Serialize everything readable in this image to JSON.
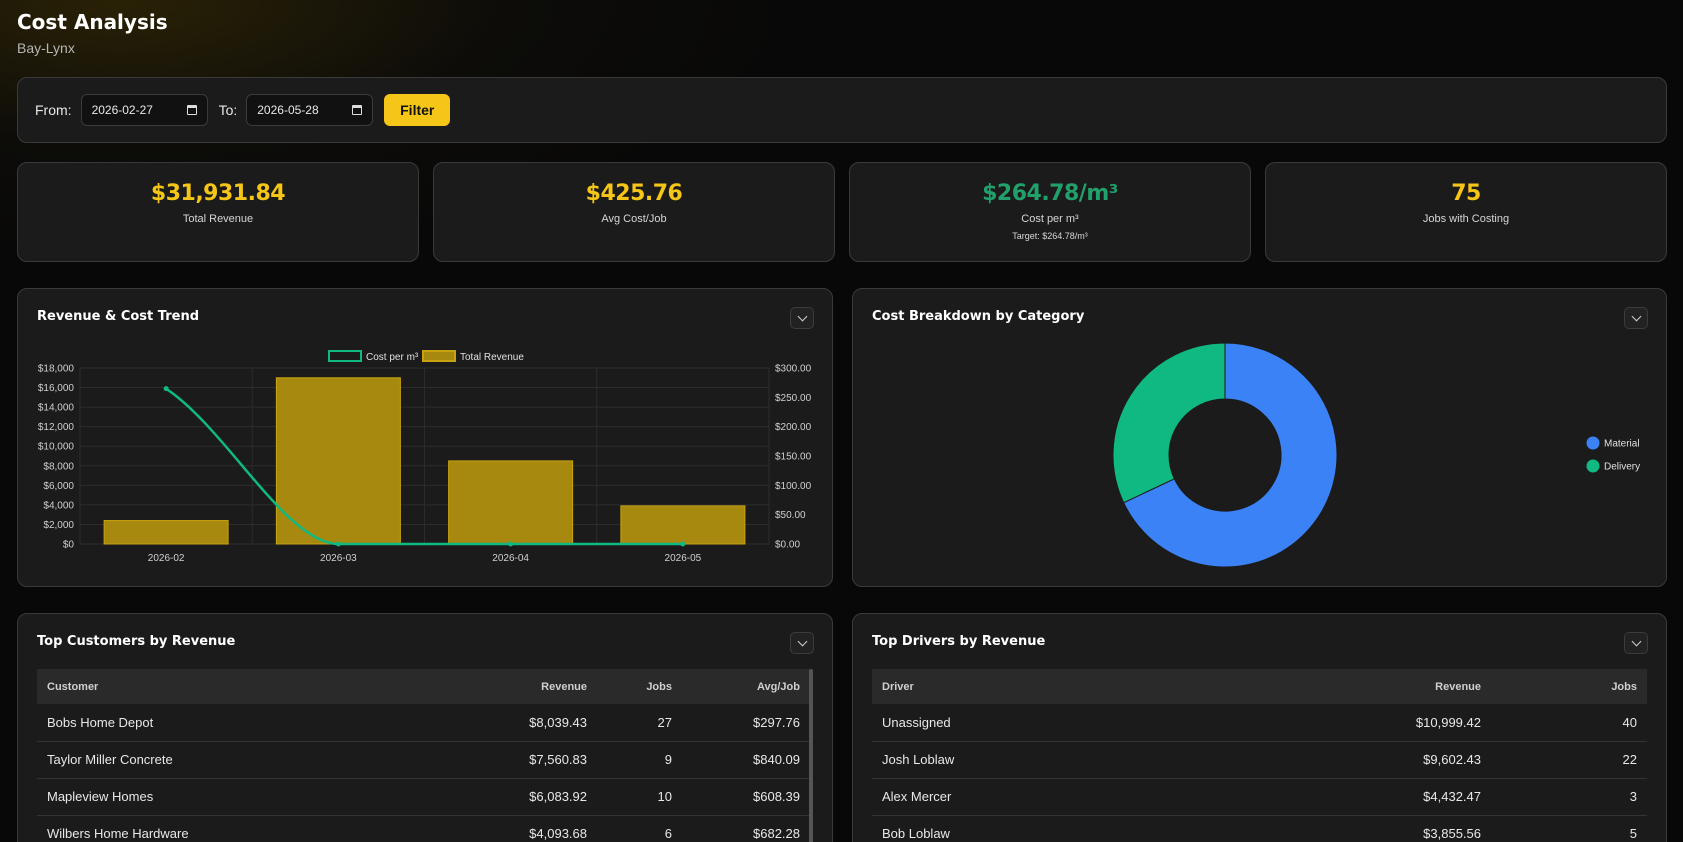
{
  "header": {
    "title": "Cost Analysis",
    "subtitle": "Bay-Lynx"
  },
  "filter": {
    "from_label": "From:",
    "from_value": "2026-02-27",
    "to_label": "To:",
    "to_value": "2026-05-28",
    "button_label": "Filter"
  },
  "stats": [
    {
      "value": "$31,931.84",
      "caption": "Total Revenue",
      "color": "#f5c518"
    },
    {
      "value": "$425.76",
      "caption": "Avg Cost/Job",
      "color": "#f5c518"
    },
    {
      "value": "$264.78/m³",
      "caption": "Cost per m³",
      "target": "Target: $264.78/m³",
      "color": "#22a06b"
    },
    {
      "value": "75",
      "caption": "Jobs with Costing",
      "color": "#f5c518"
    }
  ],
  "trend": {
    "title": "Revenue & Cost Trend"
  },
  "donut": {
    "title": "Cost Breakdown by Category"
  },
  "customers": {
    "title": "Top Customers by Revenue",
    "columns": [
      "Customer",
      "Revenue",
      "Jobs",
      "Avg/Job"
    ],
    "rows": [
      [
        "Bobs Home Depot",
        "$8,039.43",
        "27",
        "$297.76"
      ],
      [
        "Taylor Miller Concrete",
        "$7,560.83",
        "9",
        "$840.09"
      ],
      [
        "Mapleview Homes",
        "$6,083.92",
        "10",
        "$608.39"
      ],
      [
        "Wilbers Home Hardware",
        "$4,093.68",
        "6",
        "$682.28"
      ]
    ]
  },
  "drivers": {
    "title": "Top Drivers by Revenue",
    "columns": [
      "Driver",
      "Revenue",
      "Jobs"
    ],
    "rows": [
      [
        "Unassigned",
        "$10,999.42",
        "40"
      ],
      [
        "Josh Loblaw",
        "$9,602.43",
        "22"
      ],
      [
        "Alex Mercer",
        "$4,432.47",
        "3"
      ],
      [
        "Bob Loblaw",
        "$3,855.56",
        "5"
      ]
    ]
  },
  "chart_data": [
    {
      "type": "bar",
      "categories": [
        "2026-02",
        "2026-03",
        "2026-04",
        "2026-05"
      ],
      "series": [
        {
          "name": "Total Revenue",
          "type": "bar",
          "axis": "left",
          "color": "#a8890f",
          "values": [
            2400,
            17000,
            8500,
            3900
          ]
        },
        {
          "name": "Cost per m³",
          "type": "line",
          "axis": "right",
          "color": "#10b981",
          "values": [
            264.78,
            0,
            0,
            0
          ]
        }
      ],
      "legend": [
        "Cost per m³",
        "Total Revenue"
      ],
      "legend_position": "top",
      "ylim": [
        0,
        18000
      ],
      "y_ticks": [
        "$0",
        "$2,000",
        "$4,000",
        "$6,000",
        "$8,000",
        "$10,000",
        "$12,000",
        "$14,000",
        "$16,000",
        "$18,000"
      ],
      "y2lim": [
        0,
        300
      ],
      "y2_ticks": [
        "$0.00",
        "$50.00",
        "$100.00",
        "$150.00",
        "$200.00",
        "$250.00",
        "$300.00"
      ],
      "grid": true
    },
    {
      "type": "pie",
      "labels": [
        "Material",
        "Delivery"
      ],
      "values": [
        68,
        32
      ],
      "colors": [
        "#3b82f6",
        "#10b981"
      ],
      "legend_position": "right",
      "doughnut": true
    }
  ]
}
